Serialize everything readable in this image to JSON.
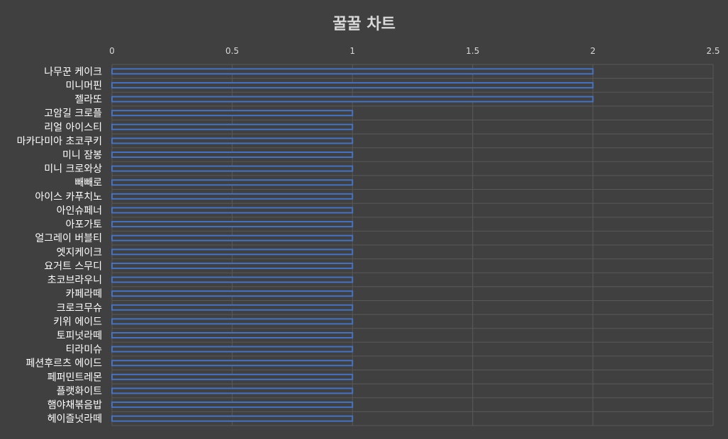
{
  "chart_data": {
    "type": "bar",
    "orientation": "horizontal",
    "title": "꿀꿀 차트",
    "xlabel": "",
    "ylabel": "",
    "xlim": [
      0,
      2.5
    ],
    "x_ticks": [
      "0",
      "0.5",
      "1",
      "1.5",
      "2",
      "2.5"
    ],
    "x_axis_position": "top",
    "grid": true,
    "legend": "none",
    "categories": [
      "나무꾼 케이크",
      "미니머핀",
      "젤라또",
      "고암길 크로플",
      "리얼 아이스티",
      "마카다미아 초코쿠키",
      "미니 잠봉",
      "미니 크로와상",
      "빼빼로",
      "아이스 카푸치노",
      "아인슈페너",
      "아포가토",
      "얼그레이 버블티",
      "엣지케이크",
      "요거트 스무디",
      "초코브라우니",
      "카페라떼",
      "크로크무슈",
      "키위 에이드",
      "토피넛라떼",
      "티라미슈",
      "페션후르츠 에이드",
      "페퍼민트레몬",
      "플랫화이트",
      "햄야채볶음밥",
      "헤이즐넛라떼"
    ],
    "values": [
      2,
      2,
      2,
      1,
      1,
      1,
      1,
      1,
      1,
      1,
      1,
      1,
      1,
      1,
      1,
      1,
      1,
      1,
      1,
      1,
      1,
      1,
      1,
      1,
      1,
      1
    ],
    "colors": {
      "background": "#404040",
      "bar_fill": "#404040",
      "bar_stroke": "#4472c4",
      "grid": "#595959",
      "text": "#d9d9d9",
      "category_text": "#ffffff"
    }
  }
}
